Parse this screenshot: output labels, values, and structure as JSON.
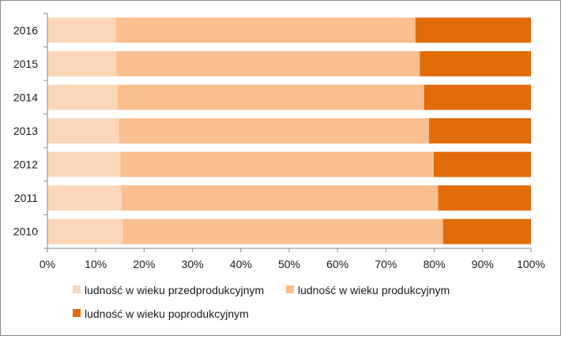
{
  "chart_data": {
    "type": "bar",
    "orientation": "horizontal",
    "stacking": "percent",
    "categories": [
      "2010",
      "2011",
      "2012",
      "2013",
      "2014",
      "2015",
      "2016"
    ],
    "series": [
      {
        "name": "ludność w wieku przedprodukcyjnym",
        "color": "#fcd6b8",
        "values": [
          15.6,
          15.3,
          15.1,
          14.8,
          14.5,
          14.3,
          14.2
        ]
      },
      {
        "name": "ludność w wieku produkcyjnym",
        "color": "#f9bf8f",
        "values": [
          66.2,
          65.5,
          64.8,
          64.1,
          63.4,
          62.7,
          61.9
        ]
      },
      {
        "name": "ludność w wieku poprodukcyjnym",
        "color": "#e26b0a",
        "values": [
          18.2,
          19.2,
          20.1,
          21.1,
          22.1,
          23.0,
          23.9
        ]
      }
    ],
    "x_ticks": [
      "0%",
      "10%",
      "20%",
      "30%",
      "40%",
      "50%",
      "60%",
      "70%",
      "80%",
      "90%",
      "100%"
    ],
    "xlim": [
      0,
      100
    ],
    "grid": false,
    "legend_position": "bottom",
    "title": "",
    "xlabel": "",
    "ylabel": ""
  }
}
